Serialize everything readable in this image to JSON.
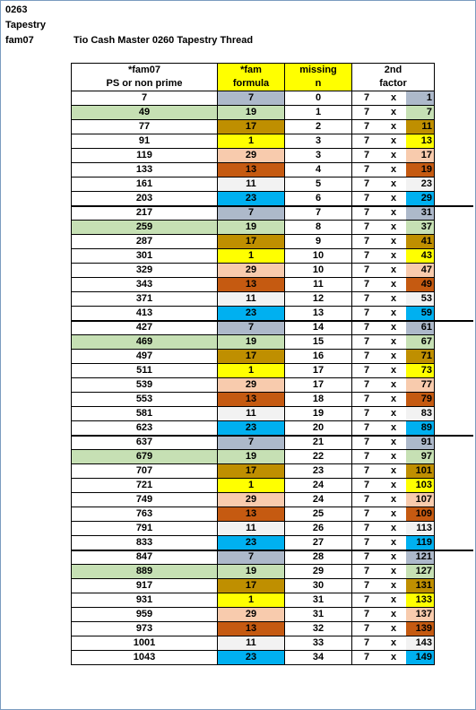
{
  "sheet": {
    "id": "0263",
    "name": "Tapestry",
    "family": "fam07",
    "title": "Tio Cash Master 0260 Tapestry Thread"
  },
  "headers": {
    "col1": [
      "*fam07",
      "PS or non prime"
    ],
    "col2": [
      "*fam",
      "formula"
    ],
    "col3": [
      "missing",
      "n"
    ],
    "col4": [
      "2nd",
      "factor"
    ]
  },
  "colors": {
    "gray": "#adb9ca",
    "green": "#c6e0b4",
    "gold": "#bf8f00",
    "yellow": "#ffff00",
    "peach": "#f8cbad",
    "orange": "#c55a11",
    "light": "#f2f2f2",
    "blue": "#00b0f0",
    "header_yellow": "#ffff00"
  },
  "rows": [
    {
      "value": "7",
      "formula": "7",
      "missing": "0",
      "a": "7",
      "x": "x",
      "factor": "1",
      "color": "gray",
      "left_highlight": false
    },
    {
      "value": "49",
      "formula": "19",
      "missing": "1",
      "a": "7",
      "x": "x",
      "factor": "7",
      "color": "green",
      "left_highlight": true
    },
    {
      "value": "77",
      "formula": "17",
      "missing": "2",
      "a": "7",
      "x": "x",
      "factor": "11",
      "color": "gold",
      "left_highlight": false
    },
    {
      "value": "91",
      "formula": "1",
      "missing": "3",
      "a": "7",
      "x": "x",
      "factor": "13",
      "color": "yellow",
      "left_highlight": false
    },
    {
      "value": "119",
      "formula": "29",
      "missing": "3",
      "a": "7",
      "x": "x",
      "factor": "17",
      "color": "peach",
      "left_highlight": false
    },
    {
      "value": "133",
      "formula": "13",
      "missing": "4",
      "a": "7",
      "x": "x",
      "factor": "19",
      "color": "orange",
      "left_highlight": false
    },
    {
      "value": "161",
      "formula": "11",
      "missing": "5",
      "a": "7",
      "x": "x",
      "factor": "23",
      "color": "light",
      "left_highlight": false
    },
    {
      "value": "203",
      "formula": "23",
      "missing": "6",
      "a": "7",
      "x": "x",
      "factor": "29",
      "color": "blue",
      "left_highlight": false
    },
    {
      "value": "217",
      "formula": "7",
      "missing": "7",
      "a": "7",
      "x": "x",
      "factor": "31",
      "color": "gray",
      "left_highlight": false
    },
    {
      "value": "259",
      "formula": "19",
      "missing": "8",
      "a": "7",
      "x": "x",
      "factor": "37",
      "color": "green",
      "left_highlight": true
    },
    {
      "value": "287",
      "formula": "17",
      "missing": "9",
      "a": "7",
      "x": "x",
      "factor": "41",
      "color": "gold",
      "left_highlight": false
    },
    {
      "value": "301",
      "formula": "1",
      "missing": "10",
      "a": "7",
      "x": "x",
      "factor": "43",
      "color": "yellow",
      "left_highlight": false
    },
    {
      "value": "329",
      "formula": "29",
      "missing": "10",
      "a": "7",
      "x": "x",
      "factor": "47",
      "color": "peach",
      "left_highlight": false
    },
    {
      "value": "343",
      "formula": "13",
      "missing": "11",
      "a": "7",
      "x": "x",
      "factor": "49",
      "color": "orange",
      "left_highlight": false
    },
    {
      "value": "371",
      "formula": "11",
      "missing": "12",
      "a": "7",
      "x": "x",
      "factor": "53",
      "color": "light",
      "left_highlight": false
    },
    {
      "value": "413",
      "formula": "23",
      "missing": "13",
      "a": "7",
      "x": "x",
      "factor": "59",
      "color": "blue",
      "left_highlight": false
    },
    {
      "value": "427",
      "formula": "7",
      "missing": "14",
      "a": "7",
      "x": "x",
      "factor": "61",
      "color": "gray",
      "left_highlight": false
    },
    {
      "value": "469",
      "formula": "19",
      "missing": "15",
      "a": "7",
      "x": "x",
      "factor": "67",
      "color": "green",
      "left_highlight": true
    },
    {
      "value": "497",
      "formula": "17",
      "missing": "16",
      "a": "7",
      "x": "x",
      "factor": "71",
      "color": "gold",
      "left_highlight": false
    },
    {
      "value": "511",
      "formula": "1",
      "missing": "17",
      "a": "7",
      "x": "x",
      "factor": "73",
      "color": "yellow",
      "left_highlight": false
    },
    {
      "value": "539",
      "formula": "29",
      "missing": "17",
      "a": "7",
      "x": "x",
      "factor": "77",
      "color": "peach",
      "left_highlight": false
    },
    {
      "value": "553",
      "formula": "13",
      "missing": "18",
      "a": "7",
      "x": "x",
      "factor": "79",
      "color": "orange",
      "left_highlight": false
    },
    {
      "value": "581",
      "formula": "11",
      "missing": "19",
      "a": "7",
      "x": "x",
      "factor": "83",
      "color": "light",
      "left_highlight": false
    },
    {
      "value": "623",
      "formula": "23",
      "missing": "20",
      "a": "7",
      "x": "x",
      "factor": "89",
      "color": "blue",
      "left_highlight": false
    },
    {
      "value": "637",
      "formula": "7",
      "missing": "21",
      "a": "7",
      "x": "x",
      "factor": "91",
      "color": "gray",
      "left_highlight": false
    },
    {
      "value": "679",
      "formula": "19",
      "missing": "22",
      "a": "7",
      "x": "x",
      "factor": "97",
      "color": "green",
      "left_highlight": true
    },
    {
      "value": "707",
      "formula": "17",
      "missing": "23",
      "a": "7",
      "x": "x",
      "factor": "101",
      "color": "gold",
      "left_highlight": false
    },
    {
      "value": "721",
      "formula": "1",
      "missing": "24",
      "a": "7",
      "x": "x",
      "factor": "103",
      "color": "yellow",
      "left_highlight": false
    },
    {
      "value": "749",
      "formula": "29",
      "missing": "24",
      "a": "7",
      "x": "x",
      "factor": "107",
      "color": "peach",
      "left_highlight": false
    },
    {
      "value": "763",
      "formula": "13",
      "missing": "25",
      "a": "7",
      "x": "x",
      "factor": "109",
      "color": "orange",
      "left_highlight": false
    },
    {
      "value": "791",
      "formula": "11",
      "missing": "26",
      "a": "7",
      "x": "x",
      "factor": "113",
      "color": "light",
      "left_highlight": false
    },
    {
      "value": "833",
      "formula": "23",
      "missing": "27",
      "a": "7",
      "x": "x",
      "factor": "119",
      "color": "blue",
      "left_highlight": false
    },
    {
      "value": "847",
      "formula": "7",
      "missing": "28",
      "a": "7",
      "x": "x",
      "factor": "121",
      "color": "gray",
      "left_highlight": false
    },
    {
      "value": "889",
      "formula": "19",
      "missing": "29",
      "a": "7",
      "x": "x",
      "factor": "127",
      "color": "green",
      "left_highlight": true
    },
    {
      "value": "917",
      "formula": "17",
      "missing": "30",
      "a": "7",
      "x": "x",
      "factor": "131",
      "color": "gold",
      "left_highlight": false
    },
    {
      "value": "931",
      "formula": "1",
      "missing": "31",
      "a": "7",
      "x": "x",
      "factor": "133",
      "color": "yellow",
      "left_highlight": false
    },
    {
      "value": "959",
      "formula": "29",
      "missing": "31",
      "a": "7",
      "x": "x",
      "factor": "137",
      "color": "peach",
      "left_highlight": false
    },
    {
      "value": "973",
      "formula": "13",
      "missing": "32",
      "a": "7",
      "x": "x",
      "factor": "139",
      "color": "orange",
      "left_highlight": false
    },
    {
      "value": "1001",
      "formula": "11",
      "missing": "33",
      "a": "7",
      "x": "x",
      "factor": "143",
      "color": "light",
      "left_highlight": false
    },
    {
      "value": "1043",
      "formula": "23",
      "missing": "34",
      "a": "7",
      "x": "x",
      "factor": "149",
      "color": "blue",
      "left_highlight": false
    }
  ]
}
